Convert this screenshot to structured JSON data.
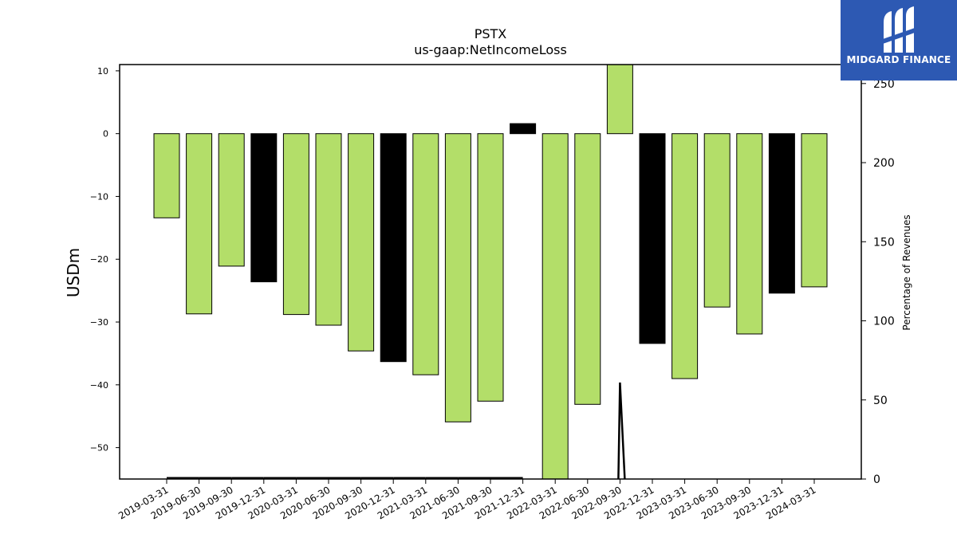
{
  "brand": {
    "name": "MIDGARD FINANCE",
    "bg": "#2d59b3"
  },
  "chart_data": {
    "type": "bar",
    "title": "PSTX",
    "subtitle": "us-gaap:NetIncomeLoss",
    "ylabel": "USDm",
    "y2label": "Percentage of Revenues",
    "ylim": [
      -55,
      11
    ],
    "y2lim": [
      0,
      262
    ],
    "yticks": [
      10,
      0,
      -10,
      -20,
      -30,
      -40,
      -50
    ],
    "y2ticks": [
      0,
      50,
      100,
      150,
      200,
      250
    ],
    "categories": [
      "2019-03-31",
      "2019-06-30",
      "2019-09-30",
      "2019-12-31",
      "2020-03-31",
      "2020-06-30",
      "2020-09-30",
      "2020-12-31",
      "2021-03-31",
      "2021-06-30",
      "2021-09-30",
      "2021-12-31",
      "2022-03-31",
      "2022-06-30",
      "2022-09-30",
      "2022-12-31",
      "2023-03-31",
      "2023-06-30",
      "2023-09-30",
      "2023-12-31",
      "2024-03-31"
    ],
    "values": [
      -13.4,
      -28.7,
      -21.1,
      -23.6,
      -28.8,
      -30.5,
      -34.6,
      -36.3,
      -38.4,
      -45.9,
      -42.6,
      1.6,
      -55.5,
      -43.1,
      11.5,
      -33.4,
      -39.0,
      -27.6,
      -31.9,
      -25.4,
      -24.4
    ],
    "bar_colors": [
      "#b3de69",
      "#b3de69",
      "#b3de69",
      "#000000",
      "#b3de69",
      "#b3de69",
      "#b3de69",
      "#000000",
      "#b3de69",
      "#b3de69",
      "#b3de69",
      "#000000",
      "#b3de69",
      "#b3de69",
      "#b3de69",
      "#000000",
      "#b3de69",
      "#b3de69",
      "#b3de69",
      "#000000",
      "#b3de69"
    ],
    "line": {
      "name": "Percentage of Revenues",
      "color": "#000000",
      "values": [
        0.6,
        0.6,
        0.6,
        0.6,
        0.6,
        0.6,
        0.6,
        0.6,
        0.6,
        0.6,
        0.6,
        0.6,
        null,
        null,
        61,
        null,
        null,
        null,
        null,
        null,
        null
      ]
    },
    "grid": false,
    "legend": "none"
  }
}
